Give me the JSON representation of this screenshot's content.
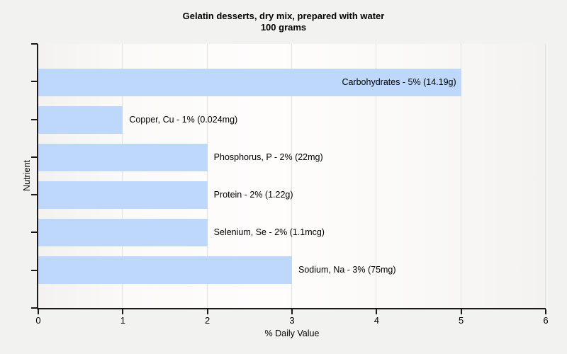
{
  "title": "Gelatin desserts, dry mix, prepared with water",
  "subtitle": "100 grams",
  "chart_data": {
    "type": "bar",
    "orientation": "horizontal",
    "title": "Gelatin desserts, dry mix, prepared with water",
    "subtitle": "100 grams",
    "xlabel": "% Daily Value",
    "ylabel": "Nutrient",
    "xlim": [
      0,
      6
    ],
    "xticks": [
      0,
      1,
      2,
      3,
      4,
      5,
      6
    ],
    "grid": true,
    "legend": "none",
    "categories": [
      "Carbohydrates",
      "Copper, Cu",
      "Phosphorus, P",
      "Protein",
      "Selenium, Se",
      "Sodium, Na"
    ],
    "values": [
      5,
      1,
      2,
      2,
      2,
      3
    ],
    "bars": [
      {
        "nutrient": "Carbohydrates",
        "percent": 5,
        "amount": "14.19g",
        "label": "Carbohydrates - 5% (14.19g)",
        "label_inside": true
      },
      {
        "nutrient": "Copper, Cu",
        "percent": 1,
        "amount": "0.024mg",
        "label": "Copper, Cu - 1% (0.024mg)",
        "label_inside": false
      },
      {
        "nutrient": "Phosphorus, P",
        "percent": 2,
        "amount": "22mg",
        "label": "Phosphorus, P - 2% (22mg)",
        "label_inside": false
      },
      {
        "nutrient": "Protein",
        "percent": 2,
        "amount": "1.22g",
        "label": "Protein - 2% (1.22g)",
        "label_inside": false
      },
      {
        "nutrient": "Selenium, Se",
        "percent": 2,
        "amount": "1.1mcg",
        "label": "Selenium, Se - 2% (1.1mcg)",
        "label_inside": false
      },
      {
        "nutrient": "Sodium, Na",
        "percent": 3,
        "amount": "75mg",
        "label": "Sodium, Na - 3% (75mg)",
        "label_inside": false
      }
    ],
    "colors": {
      "bar_fill": "#bdd8fa",
      "axis": "#1a1a1a",
      "gridline": "#e3e2e0",
      "page_background": "#f2f2f0",
      "text": "#000000"
    }
  }
}
